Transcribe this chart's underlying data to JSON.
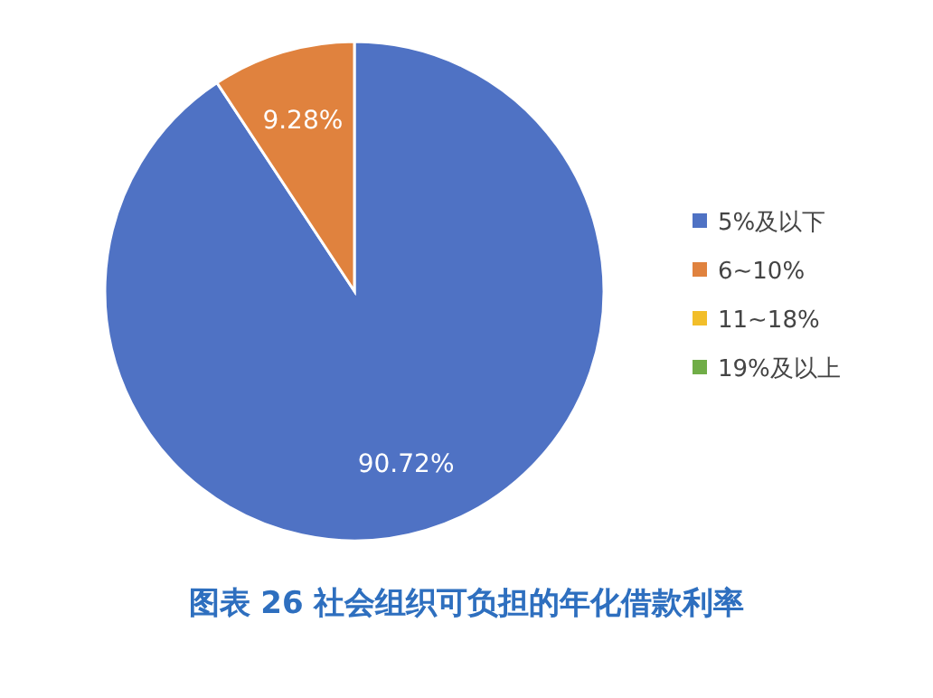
{
  "chart_data": {
    "type": "pie",
    "title": "图表 26 社会组织可负担的年化借款利率",
    "categories": [
      "5%及以下",
      "6~10%",
      "11~18%",
      "19%及以上"
    ],
    "values": [
      90.72,
      9.28,
      0,
      0
    ],
    "colors": [
      "#4f72c4",
      "#e0823e",
      "#f2be2a",
      "#70ad47"
    ],
    "value_labels": [
      "90.72%",
      "9.28%",
      null,
      null
    ],
    "legend": "right"
  }
}
